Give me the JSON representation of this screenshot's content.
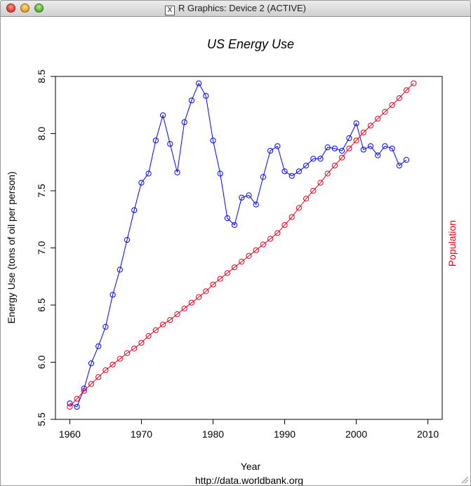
{
  "window": {
    "title": "R Graphics: Device 2 (ACTIVE)",
    "x_icon_glyph": "X"
  },
  "chart_data": {
    "type": "line",
    "title": "US Energy Use",
    "xlabel": "Year",
    "ylabel": "Energy Use (tons of oil per person)",
    "right_label": "Population",
    "footer": "http://data.worldbank.org",
    "xlim": [
      1958,
      2012
    ],
    "ylim": [
      5.5,
      8.5
    ],
    "x_ticks": [
      1960,
      1970,
      1980,
      1990,
      2000,
      2010
    ],
    "y_ticks": [
      "5.5",
      "6.0",
      "6.5",
      "7.0",
      "7.5",
      "8.0",
      "8.5"
    ],
    "grid": false,
    "series": [
      {
        "color": "#0000ff",
        "x": [
          1960,
          1961,
          1962,
          1963,
          1964,
          1965,
          1966,
          1967,
          1968,
          1969,
          1970,
          1971,
          1972,
          1973,
          1974,
          1975,
          1976,
          1977,
          1978,
          1979,
          1980,
          1981,
          1982,
          1983,
          1984,
          1985,
          1986,
          1987,
          1988,
          1989,
          1990,
          1991,
          1992,
          1993,
          1994,
          1995,
          1996,
          1997,
          1998,
          1999,
          2000,
          2001,
          2002,
          2003,
          2004,
          2005,
          2006,
          2007
        ],
        "y": [
          5.64,
          5.61,
          5.77,
          5.99,
          6.14,
          6.31,
          6.59,
          6.81,
          7.07,
          7.33,
          7.57,
          7.65,
          7.94,
          8.16,
          7.91,
          7.66,
          8.1,
          8.29,
          8.44,
          8.33,
          7.94,
          7.65,
          7.26,
          7.2,
          7.44,
          7.46,
          7.38,
          7.62,
          7.85,
          7.89,
          7.67,
          7.63,
          7.67,
          7.72,
          7.78,
          7.78,
          7.88,
          7.87,
          7.85,
          7.96,
          8.09,
          7.86,
          7.89,
          7.81,
          7.89,
          7.87,
          7.72,
          7.77
        ]
      },
      {
        "color": "#e3001b",
        "x": [
          1960,
          1961,
          1962,
          1963,
          1964,
          1965,
          1966,
          1967,
          1968,
          1969,
          1970,
          1971,
          1972,
          1973,
          1974,
          1975,
          1976,
          1977,
          1978,
          1979,
          1980,
          1981,
          1982,
          1983,
          1984,
          1985,
          1986,
          1987,
          1988,
          1989,
          1990,
          1991,
          1992,
          1993,
          1994,
          1995,
          1996,
          1997,
          1998,
          1999,
          2000,
          2001,
          2002,
          2003,
          2004,
          2005,
          2006,
          2007,
          2008
        ],
        "y": [
          5.61,
          5.68,
          5.75,
          5.81,
          5.87,
          5.93,
          5.98,
          6.03,
          6.08,
          6.12,
          6.17,
          6.23,
          6.28,
          6.33,
          6.37,
          6.42,
          6.47,
          6.52,
          6.57,
          6.62,
          6.68,
          6.73,
          6.78,
          6.83,
          6.88,
          6.93,
          6.98,
          7.03,
          7.08,
          7.13,
          7.2,
          7.27,
          7.35,
          7.43,
          7.5,
          7.57,
          7.65,
          7.72,
          7.79,
          7.87,
          7.94,
          8.01,
          8.07,
          8.13,
          8.19,
          8.25,
          8.31,
          8.38,
          8.44
        ]
      }
    ]
  }
}
